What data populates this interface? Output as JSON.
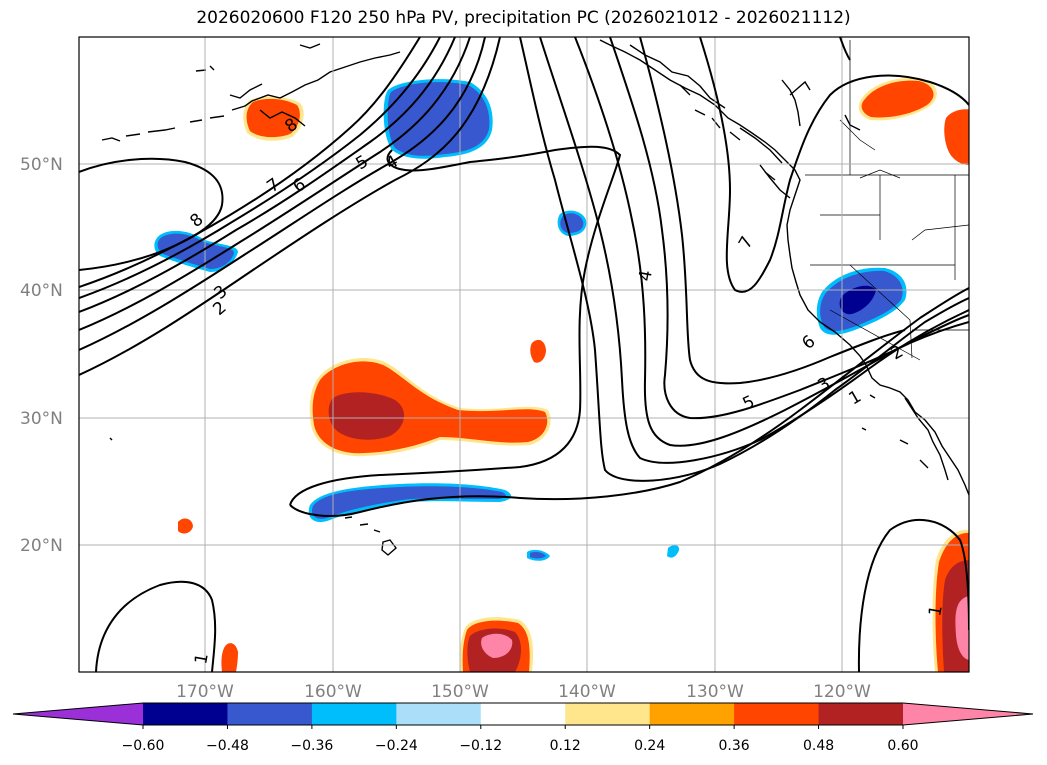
{
  "title": "2026020600 F120 250 hPa PV, precipitation PC (2026021012 - 2026021112)",
  "lat_labels": [
    "50°N",
    "40°N",
    "30°N",
    "20°N"
  ],
  "lon_labels": [
    "170°W",
    "160°W",
    "150°W",
    "140°W",
    "130°W",
    "120°W"
  ],
  "colorbar": {
    "ticks": [
      "−0.60",
      "−0.48",
      "−0.36",
      "−0.24",
      "−0.12",
      "0.12",
      "0.24",
      "0.36",
      "0.48",
      "0.60"
    ],
    "colors": [
      "#9b30d8",
      "#000090",
      "#3858cf",
      "#00bdfb",
      "#abdef9",
      "#ffffff",
      "#ffe68c",
      "#ffa200",
      "#ff4500",
      "#b22222",
      "#ff85a8",
      "#ff85a8"
    ]
  },
  "contour_labels": [
    "8",
    "7",
    "6",
    "5",
    "4",
    "3",
    "2",
    "8",
    "4",
    "7",
    "6",
    "5",
    "3",
    "2",
    "1",
    "1",
    "1"
  ],
  "colors": {
    "contour": "#000000",
    "coast": "#000000",
    "grid": "#b0b0b0"
  }
}
